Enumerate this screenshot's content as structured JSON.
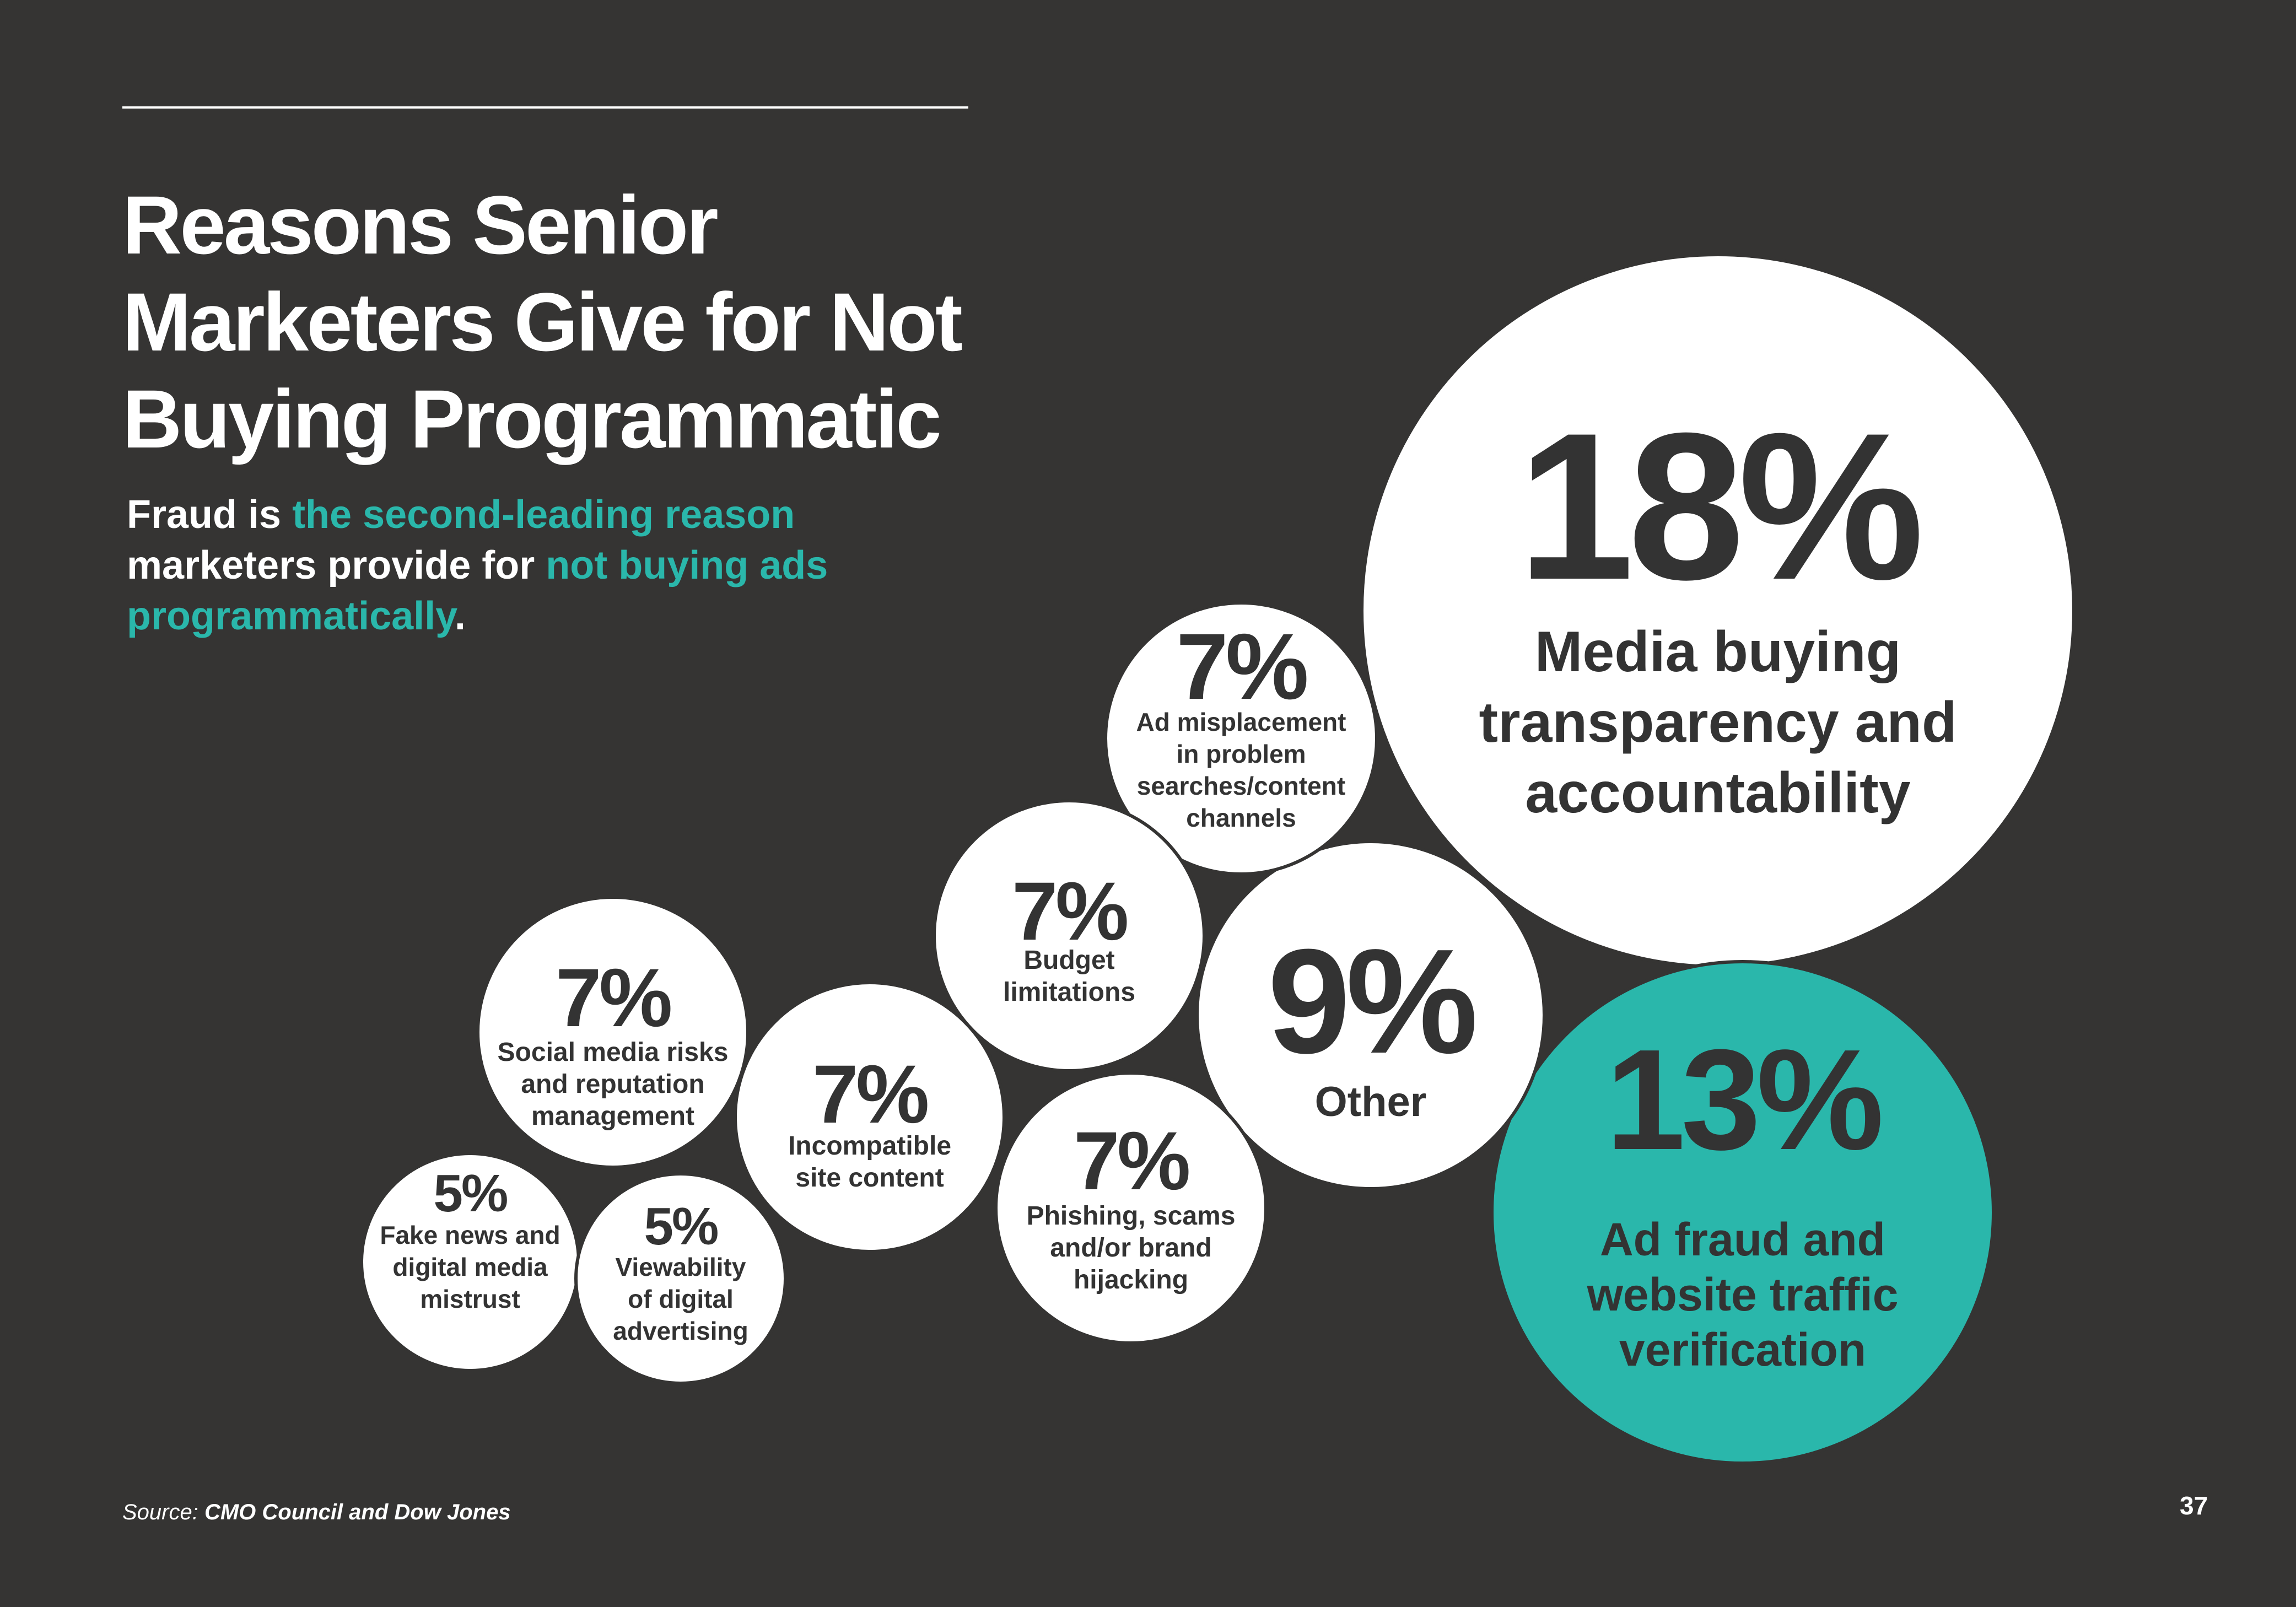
{
  "title": {
    "line1": "Reasons Senior",
    "line2": "Marketers Give for Not",
    "line3": "Buying Programmatic"
  },
  "subtitle": {
    "part1": "Fraud is ",
    "highlight1": "the second-leading reason",
    "part2": "marketers provide for ",
    "highlight2": "not buying ads programmatically",
    "end": "."
  },
  "source": {
    "label": "Source: ",
    "text": "CMO Council and Dow Jones"
  },
  "page_number": "37",
  "colors": {
    "background": "#353433",
    "bubble": "#ffffff",
    "highlight": "#2ab7ab",
    "bubble_text": "#333333"
  },
  "chart_data": {
    "type": "bubble",
    "unit": "%",
    "title": "Reasons Senior Marketers Give for Not Buying Programmatic",
    "items": [
      {
        "value": 18,
        "percent_label": "18%",
        "label_lines": [
          "Media buying",
          "transparency and",
          "accountability"
        ],
        "highlight": false
      },
      {
        "value": 13,
        "percent_label": "13%",
        "label_lines": [
          "Ad fraud and",
          "website traffic",
          "verification"
        ],
        "highlight": true
      },
      {
        "value": 9,
        "percent_label": "9%",
        "label_lines": [
          "Other"
        ],
        "highlight": false
      },
      {
        "value": 7,
        "percent_label": "7%",
        "label_lines": [
          "Ad misplacement",
          "in problem",
          "searches/content",
          "channels"
        ],
        "highlight": false
      },
      {
        "value": 7,
        "percent_label": "7%",
        "label_lines": [
          "Budget",
          "limitations"
        ],
        "highlight": false
      },
      {
        "value": 7,
        "percent_label": "7%",
        "label_lines": [
          "Phishing, scams",
          "and/or brand",
          "hijacking"
        ],
        "highlight": false
      },
      {
        "value": 7,
        "percent_label": "7%",
        "label_lines": [
          "Incompatible",
          "site content"
        ],
        "highlight": false
      },
      {
        "value": 7,
        "percent_label": "7%",
        "label_lines": [
          "Social media risks",
          "and reputation",
          "management"
        ],
        "highlight": false
      },
      {
        "value": 5,
        "percent_label": "5%",
        "label_lines": [
          "Fake news and",
          "digital media",
          "mistrust"
        ],
        "highlight": false
      },
      {
        "value": 5,
        "percent_label": "5%",
        "label_lines": [
          "Viewability",
          "of digital",
          "advertising"
        ],
        "highlight": false
      }
    ]
  }
}
